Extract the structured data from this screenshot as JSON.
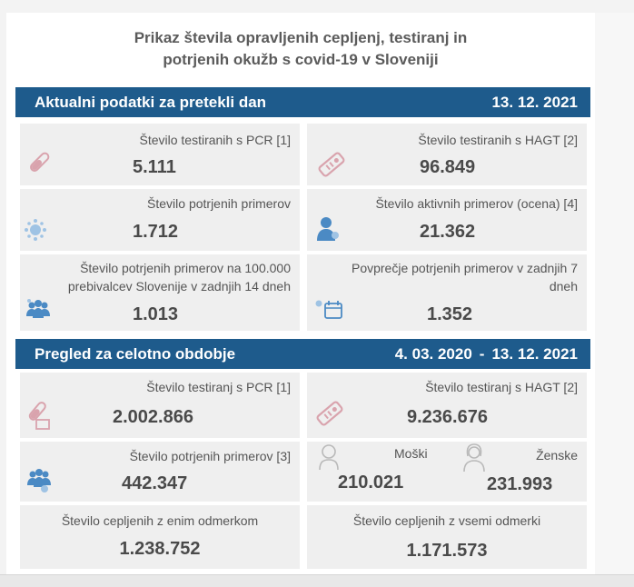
{
  "title": {
    "line1": "Prikaz števila opravljenih cepljenj, testiranj in",
    "line2": "potrjenih okužb s covid-19 v Sloveniji"
  },
  "daily": {
    "heading": "Aktualni podatki za pretekli dan",
    "date": "13. 12. 2021",
    "pcr": {
      "label": "Število testiranih s PCR [1]",
      "value": "5.111"
    },
    "hagt": {
      "label": "Število testiranih s HAGT [2]",
      "value": "96.849"
    },
    "confirmed": {
      "label": "Število potrjenih primerov",
      "value": "1.712"
    },
    "active": {
      "label": "Število aktivnih primerov (ocena) [4]",
      "value": "21.362"
    },
    "per100k": {
      "label_line1": "Število potrjenih primerov na 100.000",
      "label_line2": "prebivalcev Slovenije v zadnjih 14 dneh",
      "value": "1.013"
    },
    "avg7": {
      "label_line1": "Povprečje potrjenih primerov v zadnjih 7",
      "label_line2": "dneh",
      "value": "1.352"
    }
  },
  "overall": {
    "heading": "Pregled za celotno obdobje",
    "date_from": "4. 03. 2020",
    "dash": "-",
    "date_to": "13. 12. 2021",
    "pcr": {
      "label": "Število testiranj s PCR [1]",
      "value": "2.002.866"
    },
    "hagt": {
      "label": "Število testiranj s HAGT [2]",
      "value": "9.236.676"
    },
    "confirmed": {
      "label": "Število potrjenih primerov [3]",
      "value": "442.347"
    },
    "male": {
      "label": "Moški",
      "value": "210.021"
    },
    "female": {
      "label": "Ženske",
      "value": "231.993"
    },
    "vacc_one": {
      "label": "Število cepljenih z enim odmerkom",
      "value": "1.238.752"
    },
    "vacc_all": {
      "label": "Število cepljenih z vsemi odmerki",
      "value": "1.171.573"
    }
  },
  "colors": {
    "banner": "#1e5b8c",
    "icon_pink": "#d9a3ad",
    "icon_blue": "#4b8ac4",
    "icon_gray": "#b9b9b9"
  }
}
